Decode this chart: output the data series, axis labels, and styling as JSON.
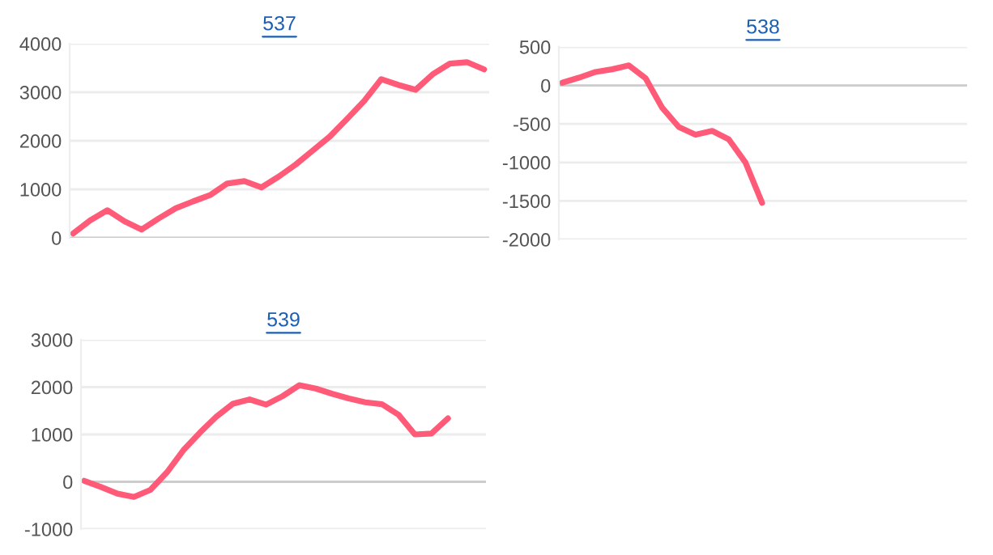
{
  "chart_data": [
    {
      "type": "line",
      "title": "537",
      "categories": [
        null,
        null,
        null,
        null,
        null,
        null,
        null,
        null,
        null,
        null,
        null,
        null,
        null,
        null,
        null,
        null,
        null,
        null,
        null,
        null,
        null,
        null,
        null,
        null,
        null
      ],
      "series": [
        {
          "color": "#ff5a78",
          "values": [
            90,
            360,
            570,
            340,
            170,
            400,
            610,
            750,
            880,
            1120,
            1170,
            1040,
            1260,
            1510,
            1800,
            2090,
            2450,
            2820,
            3270,
            3150,
            3050,
            3370,
            3590,
            3620,
            3470
          ]
        }
      ],
      "ylim": [
        0,
        4000
      ],
      "yticks": [
        0,
        1000,
        2000,
        3000,
        4000
      ],
      "grid": "y",
      "tick_labels": "y",
      "legend": false,
      "marker": "none",
      "line_style": "solid"
    },
    {
      "type": "line",
      "title": "538",
      "categories": [
        null,
        null,
        null,
        null,
        null,
        null,
        null,
        null,
        null,
        null,
        null,
        null,
        null,
        null,
        null,
        null,
        null,
        null,
        null,
        null,
        null,
        null,
        null,
        null,
        null
      ],
      "series": [
        {
          "color": "#ff5a78",
          "values": [
            35,
            100,
            175,
            210,
            260,
            95,
            -290,
            -540,
            -640,
            -590,
            -700,
            -1000,
            -1525,
            null,
            null,
            null,
            null,
            null,
            null,
            null,
            null,
            null,
            null,
            null,
            null
          ]
        }
      ],
      "ylim": [
        -2000,
        500
      ],
      "yticks": [
        -2000,
        -1500,
        -1000,
        -500,
        0,
        500
      ],
      "grid": "y",
      "tick_labels": "y",
      "legend": false,
      "marker": "none",
      "line_style": "solid"
    },
    {
      "type": "line",
      "title": "539",
      "categories": [
        null,
        null,
        null,
        null,
        null,
        null,
        null,
        null,
        null,
        null,
        null,
        null,
        null,
        null,
        null,
        null,
        null,
        null,
        null,
        null,
        null,
        null,
        null,
        null,
        null
      ],
      "series": [
        {
          "color": "#ff5a78",
          "values": [
            20,
            -110,
            -250,
            -320,
            -170,
            200,
            670,
            1040,
            1380,
            1650,
            1740,
            1630,
            1810,
            2040,
            1970,
            1860,
            1760,
            1680,
            1640,
            1420,
            1000,
            1020,
            1340,
            null,
            null
          ]
        }
      ],
      "ylim": [
        -1000,
        3000
      ],
      "yticks": [
        -1000,
        0,
        1000,
        2000,
        3000
      ],
      "grid": "y",
      "tick_labels": "y",
      "legend": false,
      "marker": "none",
      "line_style": "solid"
    }
  ]
}
